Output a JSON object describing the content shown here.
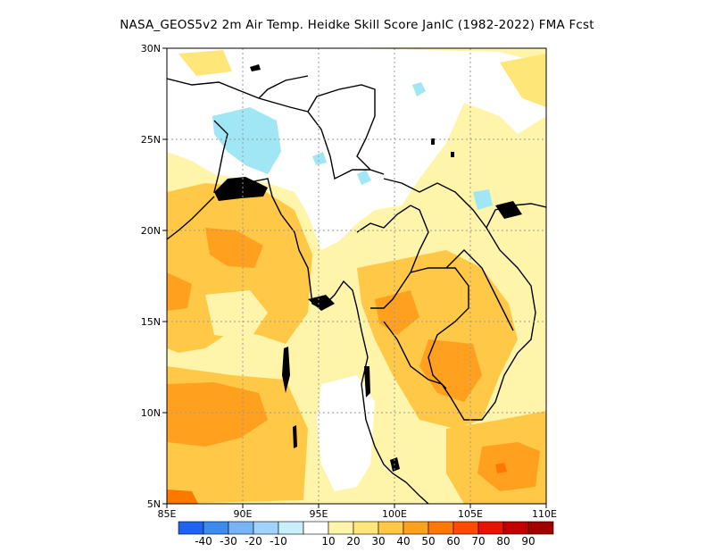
{
  "title": "NASA_GEOS5v2  2m Air Temp. Heidke Skill Score JanIC (1982-2022) FMA Fcst",
  "map": {
    "lon_range": [
      85,
      110
    ],
    "lat_range": [
      5,
      30
    ],
    "lon_ticks": [
      "85E",
      "90E",
      "95E",
      "100E",
      "105E",
      "110E"
    ],
    "lat_ticks": [
      "5N",
      "10N",
      "15N",
      "20N",
      "25N",
      "30N"
    ],
    "grid_lines": "dotted"
  },
  "colorbar": {
    "labels": [
      "-40",
      "-30",
      "-20",
      "-10",
      "10",
      "20",
      "30",
      "40",
      "50",
      "60",
      "70",
      "80",
      "90"
    ],
    "colors": [
      "#1e64f0",
      "#3c8cf0",
      "#78b4f5",
      "#a0d2fa",
      "#c8f0fa",
      "#ffffff",
      "#fff5aa",
      "#ffe678",
      "#ffc846",
      "#ffa01e",
      "#ff7800",
      "#ff4b00",
      "#e61400",
      "#be0000",
      "#a00000"
    ]
  }
}
